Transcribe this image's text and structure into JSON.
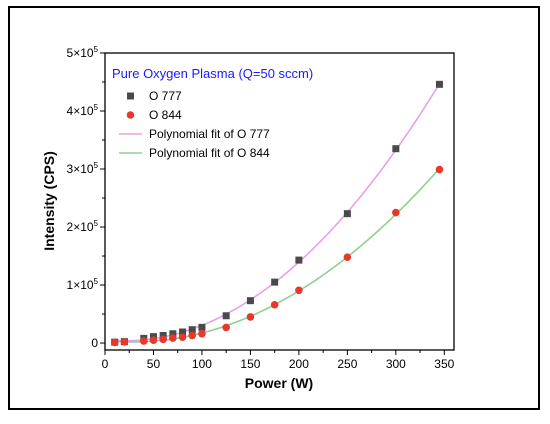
{
  "chart_data": {
    "type": "scatter",
    "title": "",
    "annotation": "Pure Oxygen Plasma (Q=50 sccm)",
    "annotation_color": "#1a1aff",
    "xlabel": "Power (W)",
    "ylabel": "Intensity (CPS)",
    "xlim": [
      0,
      360
    ],
    "ylim": [
      -12000,
      500000
    ],
    "x_ticks": [
      0,
      50,
      100,
      150,
      200,
      250,
      300,
      350
    ],
    "x_tick_labels": [
      "0",
      "50",
      "100",
      "150",
      "200",
      "250",
      "300",
      "350"
    ],
    "y_ticks": [
      0,
      100000,
      200000,
      300000,
      400000,
      500000
    ],
    "y_tick_labels": [
      {
        "base": "0",
        "exp": ""
      },
      {
        "base": "1×10",
        "exp": "5"
      },
      {
        "base": "2×10",
        "exp": "5"
      },
      {
        "base": "3×10",
        "exp": "5"
      },
      {
        "base": "4×10",
        "exp": "5"
      },
      {
        "base": "5×10",
        "exp": "5"
      }
    ],
    "grid": false,
    "legend_position": "top-left",
    "series": [
      {
        "name": "O 777",
        "marker": "square",
        "color": "#4a4a4a",
        "x": [
          10,
          20,
          40,
          50,
          60,
          70,
          80,
          90,
          100,
          125,
          150,
          175,
          200,
          250,
          300,
          345
        ],
        "y": [
          1500,
          2500,
          8000,
          11000,
          13000,
          16000,
          19000,
          23000,
          27000,
          47000,
          73000,
          105000,
          143000,
          223000,
          335000,
          446000
        ]
      },
      {
        "name": "O 844",
        "marker": "circle",
        "color": "#e8382d",
        "x": [
          10,
          20,
          40,
          50,
          60,
          70,
          80,
          90,
          100,
          125,
          150,
          175,
          200,
          250,
          300,
          345
        ],
        "y": [
          1000,
          2000,
          3500,
          5000,
          6500,
          8500,
          10000,
          13000,
          16000,
          27000,
          45000,
          66000,
          91000,
          148000,
          225000,
          299000
        ]
      },
      {
        "name": "Polynomial fit of O 777",
        "type": "line",
        "color": "#e8a0e8",
        "fit_of": "O 777"
      },
      {
        "name": "Polynomial fit of O 844",
        "type": "line",
        "color": "#8fd08f",
        "fit_of": "O 844"
      }
    ]
  }
}
